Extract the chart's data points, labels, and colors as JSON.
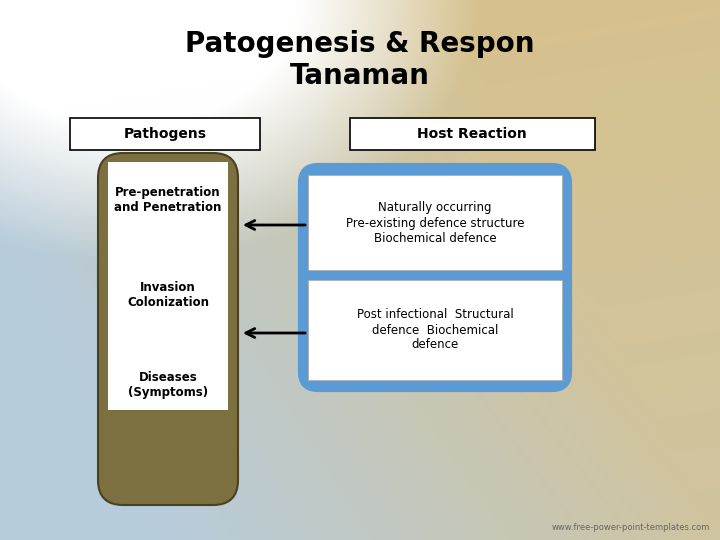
{
  "title": "Patogenesis & Respon\nTanaman",
  "title_fontsize": 20,
  "title_fontweight": "bold",
  "pathogens_label": "Pathogens",
  "host_reaction_label": "Host Reaction",
  "left_box_color": "#7d7040",
  "left_box_items": [
    "Pre-penetration\nand Penetration",
    "Invasion\nColonization",
    "Diseases\n(Symptoms)"
  ],
  "right_box_color": "#5b9bd5",
  "right_box_items": [
    "Naturally occurring\nPre-existing defence structure\nBiochemical defence",
    "Post infectional  Structural\ndefence  Biochemical\ndefence"
  ],
  "inner_box_bg": "#ffffff",
  "arrow_color": "#000000",
  "watermark": "www.free-power-point-templates.com"
}
